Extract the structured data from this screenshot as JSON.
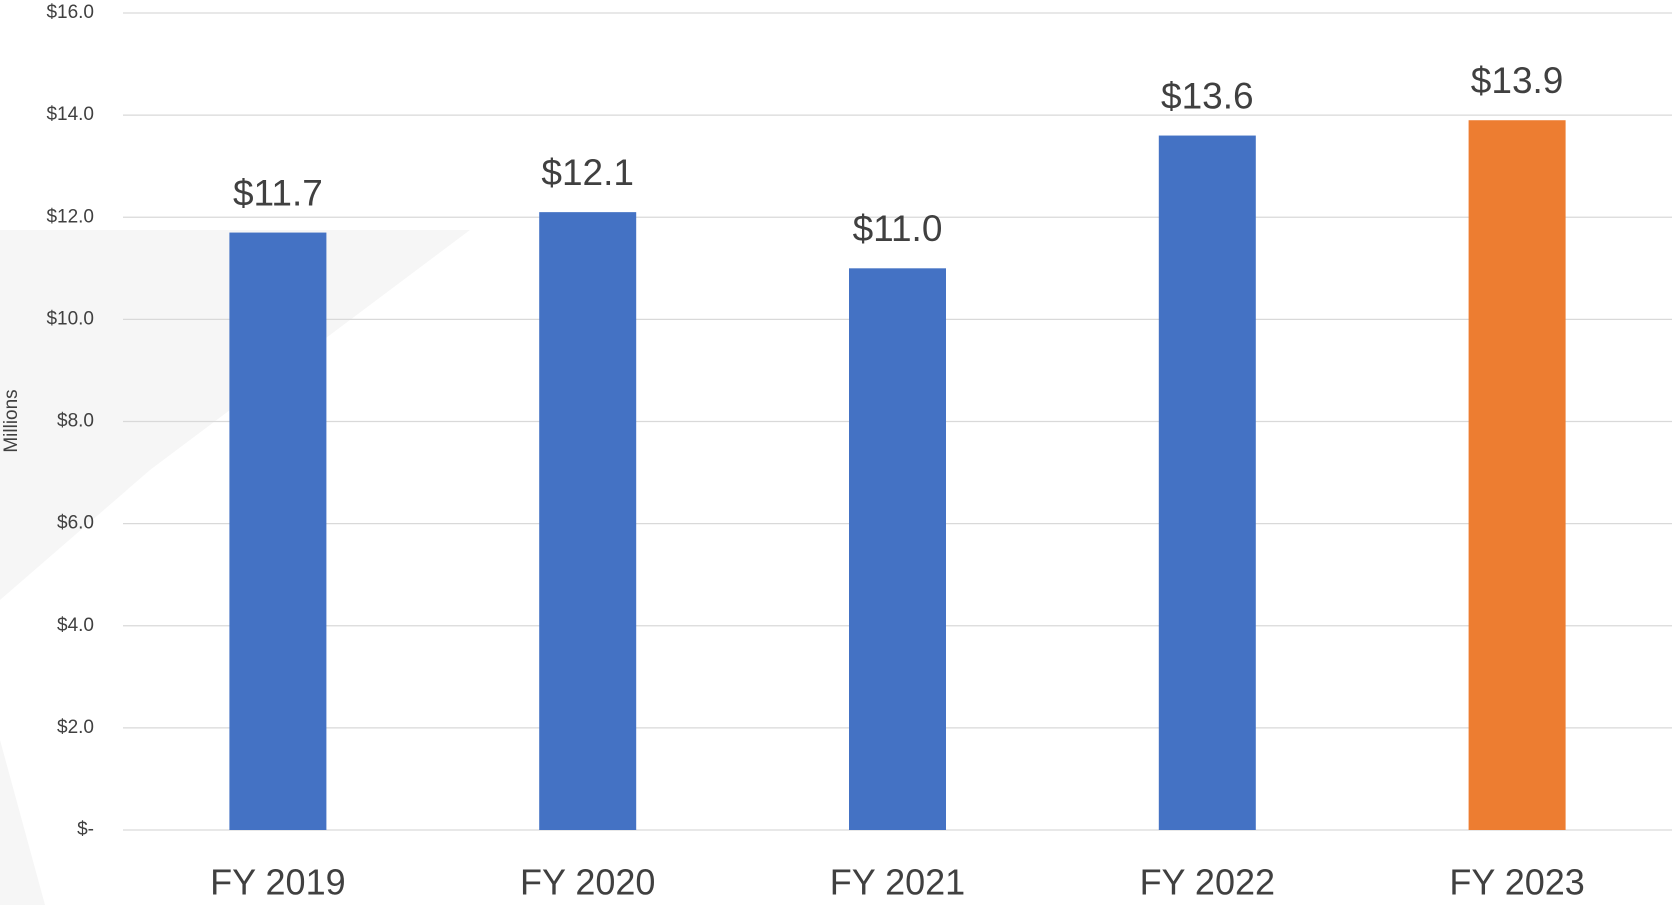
{
  "chart_data": {
    "type": "bar",
    "y_axis_label": "Millions",
    "categories": [
      "FY 2019",
      "FY 2020",
      "FY 2021",
      "FY 2022",
      "FY 2023"
    ],
    "values": [
      11.7,
      12.1,
      11.0,
      13.6,
      13.9
    ],
    "value_labels": [
      "$11.7",
      "$12.1",
      "$11.0",
      "$13.6",
      "$13.9"
    ],
    "colors": [
      "#4472c4",
      "#4472c4",
      "#4472c4",
      "#4472c4",
      "#ed7d31"
    ],
    "ylim": [
      0,
      16
    ],
    "yticks": [
      {
        "value": 0,
        "label": "$-"
      },
      {
        "value": 2,
        "label": "$2.0"
      },
      {
        "value": 4,
        "label": "$4.0"
      },
      {
        "value": 6,
        "label": "$6.0"
      },
      {
        "value": 8,
        "label": "$8.0"
      },
      {
        "value": 10,
        "label": "$10.0"
      },
      {
        "value": 12,
        "label": "$12.0"
      },
      {
        "value": 14,
        "label": "$14.0"
      },
      {
        "value": 16,
        "label": "$16.0"
      }
    ],
    "grid": true
  }
}
